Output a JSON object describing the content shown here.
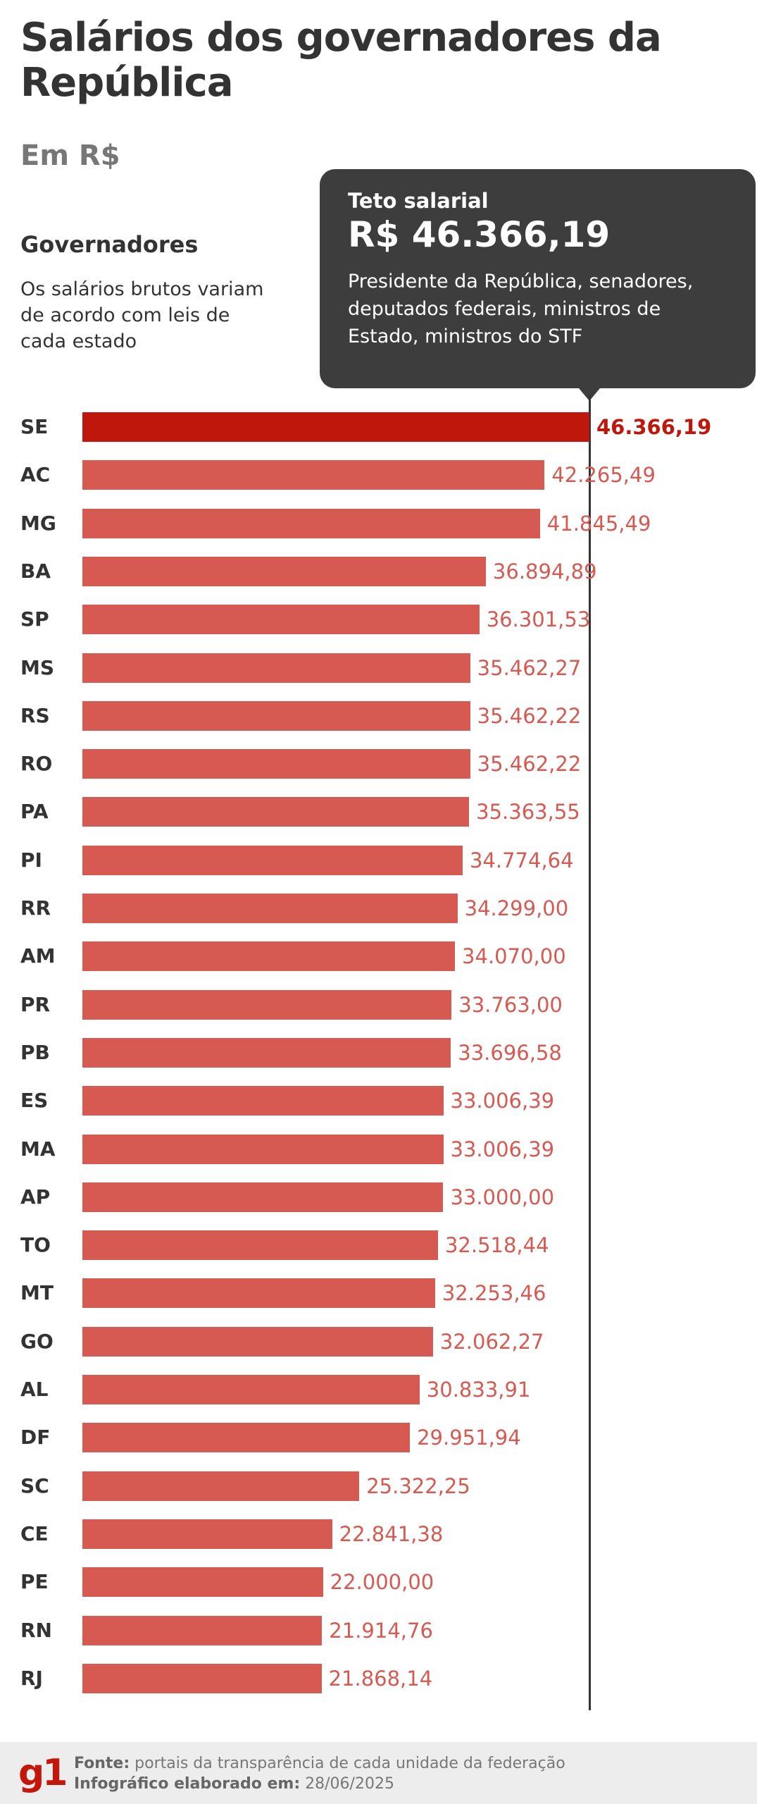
{
  "header": {
    "title": "Salários dos governadores da República",
    "subtitle": "Em R$"
  },
  "legend": {
    "title": "Governadores",
    "description": "Os salários brutos variam de acordo com leis de cada estado"
  },
  "tooltip": {
    "label": "Teto salarial",
    "value": "R$ 46.366,19",
    "description": "Presidente da República, senadores, deputados federais, ministros de Estado, ministros do STF"
  },
  "colors": {
    "highlight": "#c0170c",
    "bar": "#d75a52",
    "tooltip_bg": "#3d3d3d",
    "logo": "#c4170c"
  },
  "chart_data": {
    "type": "bar",
    "orientation": "horizontal",
    "title": "Salários dos governadores da República",
    "subtitle": "Em R$",
    "reference_line": {
      "label": "Teto salarial",
      "value": 46366.19
    },
    "xlim": [
      0,
      46366.19
    ],
    "grid": false,
    "categories": [
      "SE",
      "AC",
      "MG",
      "BA",
      "SP",
      "MS",
      "RS",
      "RO",
      "PA",
      "PI",
      "RR",
      "AM",
      "PR",
      "PB",
      "ES",
      "MA",
      "AP",
      "TO",
      "MT",
      "GO",
      "AL",
      "DF",
      "SC",
      "CE",
      "PE",
      "RN",
      "RJ"
    ],
    "values": [
      46366.19,
      42265.49,
      41845.49,
      36894.89,
      36301.53,
      35462.27,
      35462.22,
      35462.22,
      35363.55,
      34774.64,
      34299.0,
      34070.0,
      33763.0,
      33696.58,
      33006.39,
      33006.39,
      33000.0,
      32518.44,
      32253.46,
      32062.27,
      30833.91,
      29951.94,
      25322.25,
      22841.38,
      22000.0,
      21914.76,
      21868.14
    ],
    "labels": [
      "46.366,19",
      "42.265,49",
      "41.845,49",
      "36.894,89",
      "36.301,53",
      "35.462,27",
      "35.462,22",
      "35.462,22",
      "35.363,55",
      "34.774,64",
      "34.299,00",
      "34.070,00",
      "33.763,00",
      "33.696,58",
      "33.006,39",
      "33.006,39",
      "33.000,00",
      "32.518,44",
      "32.253,46",
      "32.062,27",
      "30.833,91",
      "29.951,94",
      "25.322,25",
      "22.841,38",
      "22.000,00",
      "21.914,76",
      "21.868,14"
    ],
    "highlighted": [
      "SE"
    ]
  },
  "footer": {
    "logo": "g1",
    "source_label": "Fonte:",
    "source": "portais da transparência de cada unidade da federação",
    "date_label": "Infográfico elaborado em:",
    "date": "28/06/2025"
  }
}
